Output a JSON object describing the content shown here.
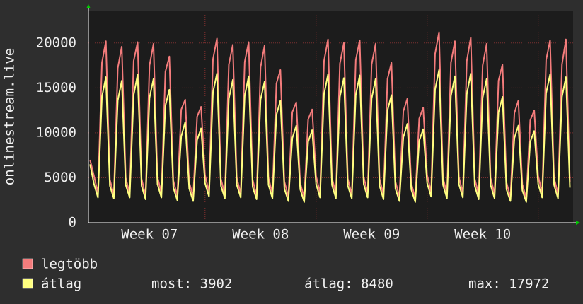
{
  "chart_data": {
    "type": "line",
    "ylabel": "onlinestream.live",
    "ylim": [
      0,
      23600
    ],
    "yticks": [
      0,
      5000,
      10000,
      15000,
      20000
    ],
    "xlim": [
      -0.35,
      30.2
    ],
    "xticks": [
      {
        "value": 3.5,
        "label": "Week 07"
      },
      {
        "value": 10.5,
        "label": "Week 08"
      },
      {
        "value": 17.5,
        "label": "Week 09"
      },
      {
        "value": 24.5,
        "label": "Week 10"
      }
    ],
    "grid": true,
    "x": [
      -0.25,
      0,
      0.25,
      0.5,
      0.75,
      1,
      1.25,
      1.5,
      1.75,
      2,
      2.25,
      2.5,
      2.75,
      3,
      3.25,
      3.5,
      3.75,
      4,
      4.25,
      4.5,
      4.75,
      5,
      5.25,
      5.5,
      5.75,
      6,
      6.25,
      6.5,
      6.75,
      7,
      7.25,
      7.5,
      7.75,
      8,
      8.25,
      8.5,
      8.75,
      9,
      9.25,
      9.5,
      9.75,
      10,
      10.25,
      10.5,
      10.75,
      11,
      11.25,
      11.5,
      11.75,
      12,
      12.25,
      12.5,
      12.75,
      13,
      13.25,
      13.5,
      13.75,
      14,
      14.25,
      14.5,
      14.75,
      15,
      15.25,
      15.5,
      15.75,
      16,
      16.25,
      16.5,
      16.75,
      17,
      17.25,
      17.5,
      17.75,
      18,
      18.25,
      18.5,
      18.75,
      19,
      19.25,
      19.5,
      19.75,
      20,
      20.25,
      20.5,
      20.75,
      21,
      21.25,
      21.5,
      21.75,
      22,
      22.25,
      22.5,
      22.75,
      23,
      23.25,
      23.5,
      23.75,
      24,
      24.25,
      24.5,
      24.75,
      25,
      25.25,
      25.5,
      25.75,
      26,
      26.25,
      26.5,
      26.75,
      27,
      27.25,
      27.5,
      27.75,
      28,
      28.25,
      28.5,
      28.75,
      29,
      29.25,
      29.5,
      29.75,
      30
    ],
    "series": [
      {
        "name": "legtöbb",
        "color": "#f47c7c",
        "values": [
          7000,
          5200,
          3300,
          17800,
          20200,
          4800,
          3100,
          17200,
          19600,
          5000,
          3200,
          18000,
          20100,
          4900,
          3000,
          17500,
          19900,
          5100,
          3300,
          16800,
          18500,
          4700,
          3000,
          12600,
          13700,
          4500,
          2900,
          11800,
          12900,
          5300,
          3400,
          18200,
          20500,
          4900,
          3100,
          17600,
          19800,
          5000,
          3200,
          17900,
          20100,
          4800,
          3000,
          17300,
          19700,
          5000,
          3200,
          15500,
          17000,
          4600,
          2900,
          12300,
          13400,
          4400,
          2800,
          11500,
          12600,
          5200,
          3300,
          18000,
          20400,
          5000,
          3200,
          17700,
          20000,
          4900,
          3100,
          18100,
          20300,
          5100,
          3300,
          17600,
          19900,
          4900,
          3100,
          16000,
          17800,
          4600,
          2900,
          12400,
          13800,
          4400,
          2700,
          11600,
          12800,
          5300,
          3400,
          18800,
          21200,
          5000,
          3200,
          17800,
          20200,
          5100,
          3300,
          18000,
          20600,
          4900,
          3100,
          17500,
          19900,
          5000,
          3200,
          15800,
          17600,
          4500,
          2800,
          12200,
          13600,
          4300,
          2700,
          11400,
          12500,
          5200,
          3300,
          18100,
          20300,
          5000,
          3200,
          17600,
          20400,
          4500
        ]
      },
      {
        "name": "átlag",
        "color": "#ffff80",
        "values": [
          6500,
          4300,
          2800,
          14000,
          16200,
          4100,
          2700,
          13600,
          15800,
          4200,
          2800,
          14200,
          16500,
          4100,
          2600,
          13900,
          16000,
          4300,
          2800,
          13000,
          14800,
          3900,
          2500,
          9600,
          11200,
          3800,
          2400,
          9200,
          10500,
          4400,
          2900,
          14500,
          16600,
          4100,
          2700,
          13800,
          15900,
          4200,
          2800,
          14100,
          16300,
          4000,
          2600,
          13700,
          15700,
          4200,
          2700,
          12000,
          13600,
          3800,
          2400,
          9400,
          10800,
          3700,
          2300,
          9000,
          10300,
          4300,
          2800,
          14300,
          16500,
          4200,
          2700,
          14000,
          16100,
          4100,
          2700,
          14200,
          16400,
          4300,
          2800,
          13800,
          16000,
          4100,
          2600,
          12500,
          14200,
          3800,
          2400,
          9500,
          11000,
          3700,
          2300,
          9100,
          10400,
          4400,
          2900,
          14800,
          17000,
          4200,
          2700,
          14100,
          16300,
          4300,
          2800,
          14300,
          16600,
          4100,
          2600,
          13900,
          16000,
          4200,
          2700,
          12300,
          14000,
          3700,
          2400,
          9400,
          10800,
          3600,
          2300,
          9000,
          10200,
          4300,
          2800,
          14400,
          16500,
          4200,
          2700,
          14000,
          16200,
          3902
        ]
      }
    ],
    "stats": [
      "most: 3902",
      "átlag: 8480",
      "max: 17972"
    ]
  }
}
